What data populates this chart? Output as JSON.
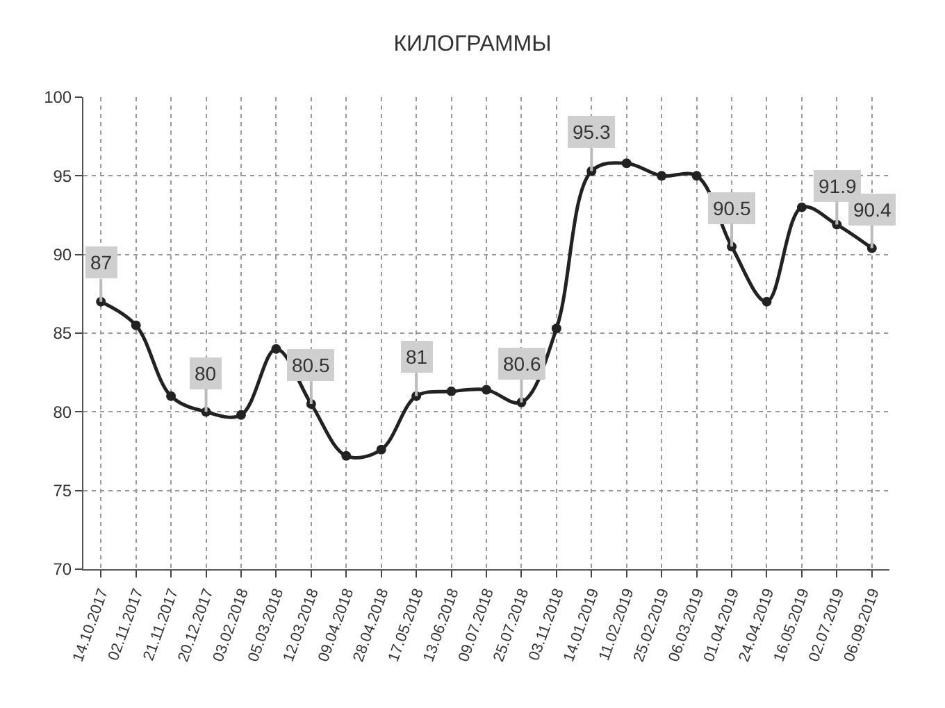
{
  "chart_data": {
    "type": "line",
    "title": "КИЛОГРАММЫ",
    "categories": [
      "14.10.2017",
      "02.11.2017",
      "21.11.2017",
      "20.12.2017",
      "03.02.2018",
      "05.03.2018",
      "12.03.2018",
      "09.04.2018",
      "28.04.2018",
      "17.05.2018",
      "13.06.2018",
      "09.07.2018",
      "25.07.2018",
      "03.11.2018",
      "14.01.2019",
      "11.02.2019",
      "25.02.2019",
      "06.03.2019",
      "01.04.2019",
      "24.04.2019",
      "16.05.2019",
      "02.07.2019",
      "06.09.2019"
    ],
    "series": [
      {
        "color": "#222222",
        "values": [
          87,
          85.5,
          81,
          80,
          79.8,
          84,
          80.5,
          77.2,
          77.6,
          81,
          81.3,
          81.4,
          80.6,
          85.3,
          95.3,
          95.8,
          95,
          95,
          90.5,
          87,
          93,
          91.9,
          90.4
        ],
        "value_labels": [
          "87",
          null,
          null,
          "80",
          null,
          null,
          "80.5",
          null,
          null,
          "81",
          null,
          null,
          "80.6",
          null,
          "95.3",
          null,
          null,
          null,
          "90.5",
          null,
          null,
          "91.9",
          "90.4"
        ]
      }
    ],
    "ylim": [
      70,
      100
    ],
    "yticks": [
      70,
      75,
      80,
      85,
      90,
      95,
      100
    ],
    "grid": true,
    "legend": false,
    "marker": "circle",
    "line_style": "solid"
  }
}
